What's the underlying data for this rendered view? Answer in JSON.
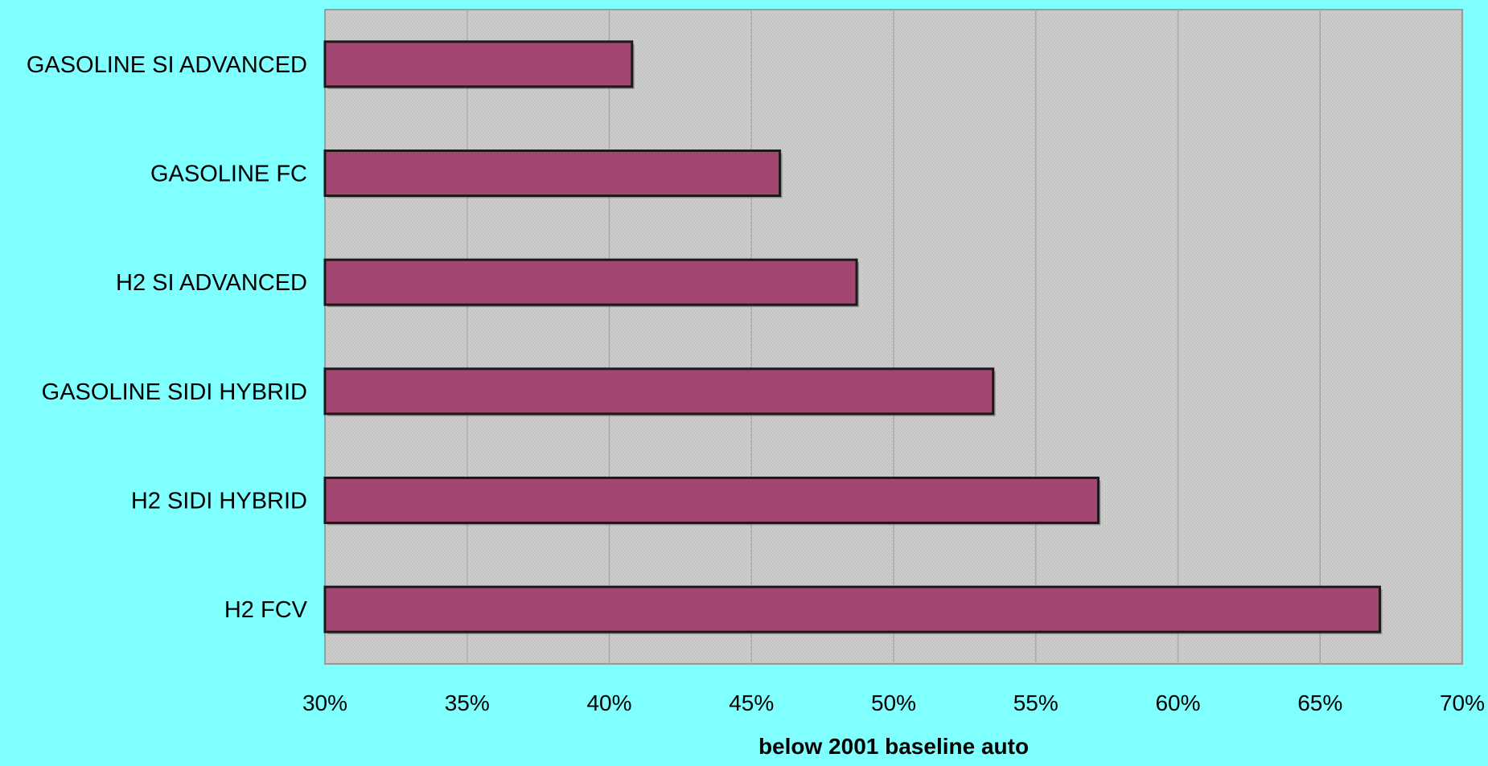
{
  "chart_data": {
    "type": "bar",
    "orientation": "horizontal",
    "categories": [
      "GASOLINE SI ADVANCED",
      "GASOLINE FC",
      "H2 SI ADVANCED",
      "GASOLINE SIDI HYBRID",
      "H2 SIDI HYBRID",
      "H2 FCV"
    ],
    "values": [
      40.8,
      46.0,
      48.7,
      53.5,
      57.2,
      67.1
    ],
    "value_unit": "%",
    "title": "",
    "xlabel": "below 2001 baseline auto",
    "ylabel": "",
    "xlim": [
      30,
      70
    ],
    "x_ticks": [
      "30%",
      "35%",
      "40%",
      "45%",
      "50%",
      "55%",
      "60%",
      "65%",
      "70%"
    ],
    "grid": true,
    "legend": "none",
    "colors": {
      "page_background": "#80ffff",
      "plot_background": "#c8c8c8",
      "bar_fill": "#a44672",
      "bar_edge": "#1a1a1a",
      "grid": "#aaaaaa",
      "text": "#000000"
    }
  }
}
